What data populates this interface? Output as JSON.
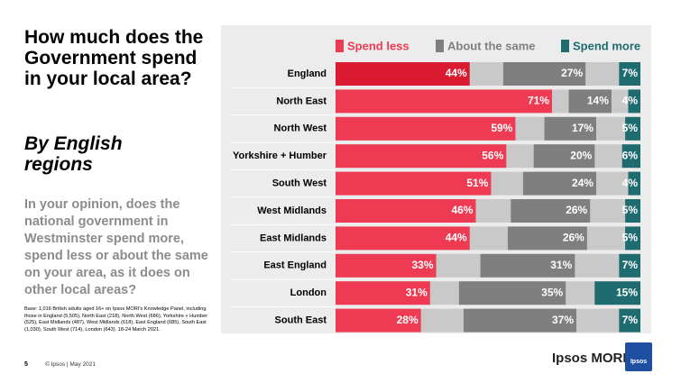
{
  "chart_data": {
    "type": "stacked_bar_horizontal",
    "title": "How much does the Government spend in your local area?",
    "subtitle": "By English regions",
    "categories": [
      "England",
      "North East",
      "North West",
      "Yorkshire + Humber",
      "South West",
      "West Midlands",
      "East Midlands",
      "East England",
      "London",
      "South East"
    ],
    "xlim": [
      0,
      100
    ],
    "series": [
      {
        "name": "Spend less",
        "color": "#ee3a52",
        "values": [
          44,
          71,
          59,
          56,
          51,
          46,
          44,
          33,
          31,
          28
        ],
        "value_labels": [
          "44%",
          "71%",
          "59%",
          "56%",
          "51%",
          "46%",
          "44%",
          "33%",
          "31%",
          "28%"
        ]
      },
      {
        "name": "About the same",
        "color": "#7f7f7f",
        "values": [
          27,
          14,
          17,
          20,
          24,
          26,
          26,
          31,
          35,
          37
        ],
        "value_labels": [
          "27%",
          "14%",
          "17%",
          "20%",
          "24%",
          "26%",
          "26%",
          "31%",
          "35%",
          "37%"
        ]
      },
      {
        "name": "Spend more",
        "color": "#1f6c70",
        "values": [
          7,
          4,
          5,
          6,
          4,
          5,
          5,
          7,
          15,
          7
        ],
        "value_labels": [
          "7%",
          "4%",
          "5%",
          "6%",
          "4%",
          "5%",
          "5%",
          "7%",
          "15%",
          "7%"
        ]
      }
    ]
  },
  "slide": {
    "question": "In your opinion, does the national government in Westminster spend more, spend less or about the same on your area, as it does on other local areas?",
    "base": "Base: 1,016 British adults aged 16+ on Ipsos MORI's Knowledge Panel, including those in England (5,505), North East (218), North West (686), Yorkshire + Humber (525), East Midlands (487), West Midlands (618), East England (685), South East (1,030), South West (714), London (643). 18-24 March 2021.",
    "page_number": "5",
    "footer": "© Ipsos | May 2021",
    "brand": "Ipsos MORI",
    "logo": "Ipsos"
  }
}
